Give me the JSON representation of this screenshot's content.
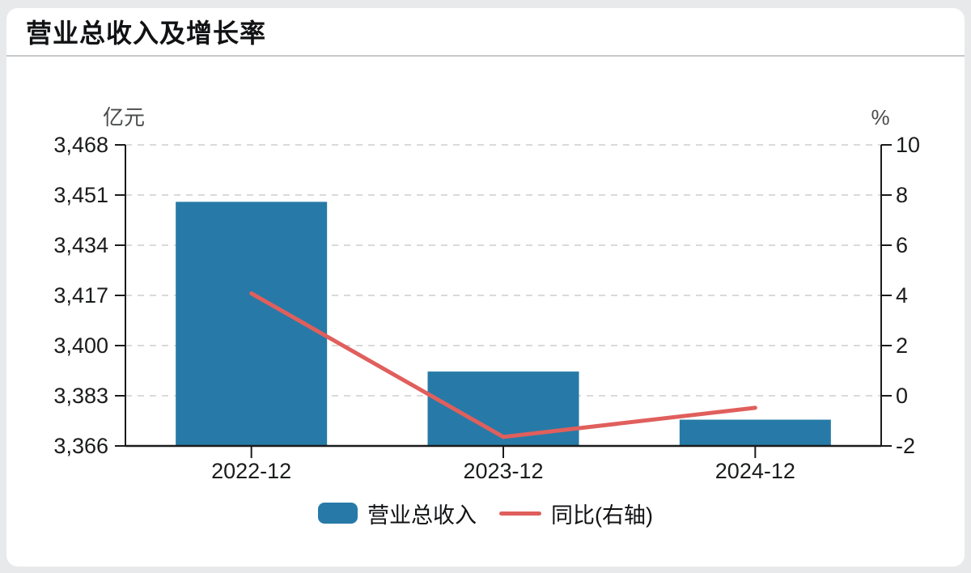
{
  "card": {
    "title": "营业总收入及增长率"
  },
  "chart_data": {
    "type": "bar+line",
    "title": "营业总收入及增长率",
    "categories": [
      "2022-12",
      "2023-12",
      "2024-12"
    ],
    "series": [
      {
        "name": "营业总收入",
        "type": "bar",
        "axis": "left",
        "unit": "亿元",
        "values": [
          3448.7,
          3391.2,
          3374.9
        ],
        "color": "#277aa7"
      },
      {
        "name": "同比(右轴)",
        "type": "line",
        "axis": "right",
        "unit": "%",
        "values": [
          4.08,
          -1.64,
          -0.48
        ],
        "color": "#e05f5c"
      }
    ],
    "left_axis": {
      "unit": "亿元",
      "min": 3366,
      "max": 3468,
      "tick_labels": [
        "3,468",
        "3,451",
        "3,434",
        "3,417",
        "3,400",
        "3,383",
        "3,366"
      ]
    },
    "right_axis": {
      "unit": "%",
      "min": -2,
      "max": 10,
      "tick_labels": [
        "10",
        "8",
        "6",
        "4",
        "2",
        "0",
        "-2"
      ]
    },
    "grid": "horizontal-dashed",
    "legend_position": "bottom"
  },
  "legend": {
    "items": [
      {
        "label": "营业总收入",
        "swatch": "bar",
        "color": "#277aa7"
      },
      {
        "label": "同比(右轴)",
        "swatch": "line",
        "color": "#e05f5c"
      }
    ]
  },
  "colors": {
    "page_bg": "#e8e9ea",
    "card_bg": "#ffffff",
    "divider": "#c7c8ca",
    "grid": "#dadada",
    "axis": "#1a1b1c",
    "bar": "#277aa7",
    "line": "#e05f5c"
  }
}
